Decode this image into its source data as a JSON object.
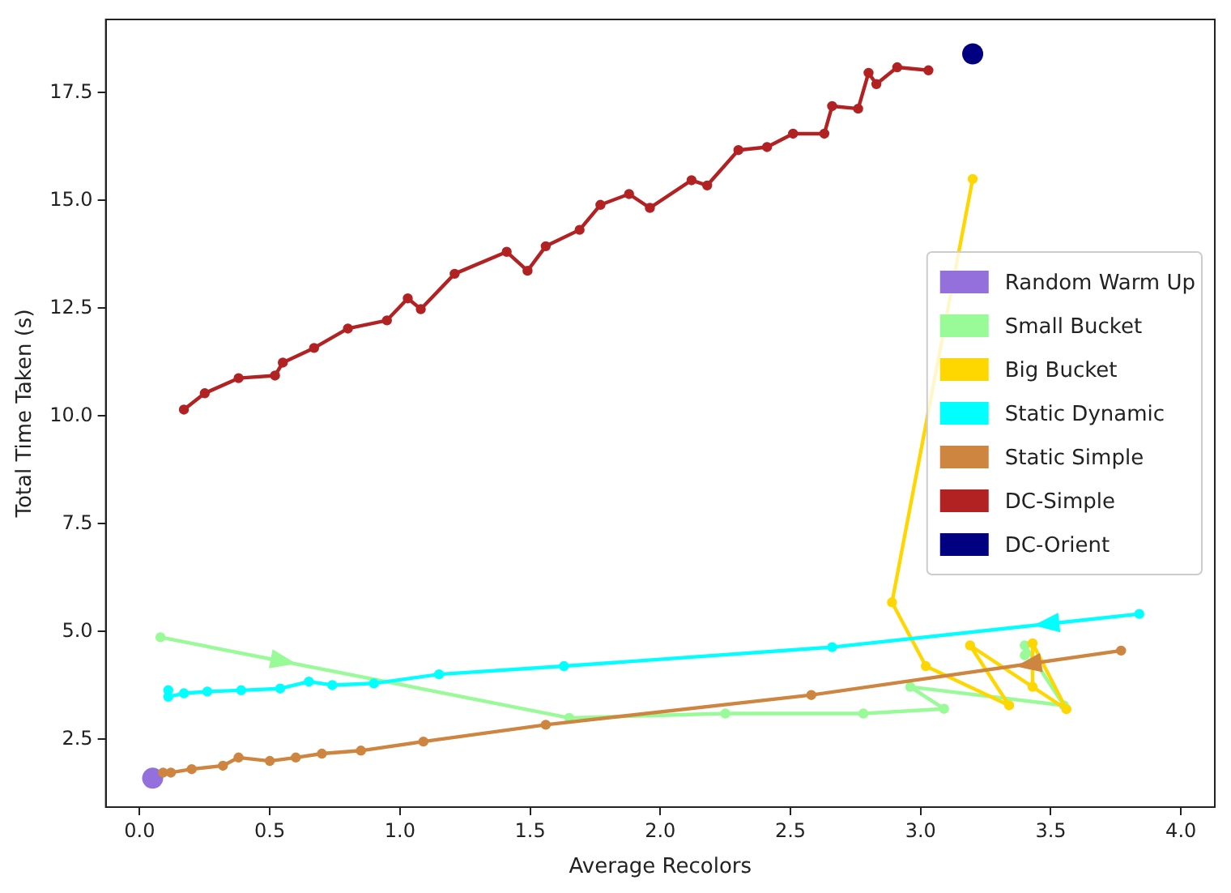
{
  "chart_data": {
    "type": "line",
    "xlabel": "Average Recolors",
    "ylabel": "Total Time Taken (s)",
    "xlim": [
      -0.13,
      4.13
    ],
    "ylim": [
      0.93,
      19.2
    ],
    "xticks": [
      {
        "value": 0,
        "label": "0.0"
      },
      {
        "value": 0.5,
        "label": "0.5"
      },
      {
        "value": 1,
        "label": "1.0"
      },
      {
        "value": 1.5,
        "label": "1.5"
      },
      {
        "value": 2,
        "label": "2.0"
      },
      {
        "value": 2.5,
        "label": "2.5"
      },
      {
        "value": 3,
        "label": "3.0"
      },
      {
        "value": 3.5,
        "label": "3.5"
      },
      {
        "value": 4,
        "label": "4.0"
      }
    ],
    "yticks": [
      2.5,
      {
        "value": 5,
        "label": "5.0"
      },
      7.5,
      {
        "value": 10,
        "label": "10.0"
      },
      12.5,
      {
        "value": 15,
        "label": "15.0"
      },
      17.5
    ],
    "grid": false,
    "legend": "right",
    "marker": "circle",
    "line_style": "solid",
    "series": [
      {
        "name": "Random Warm Up",
        "type": "scatter",
        "color": "#9370db",
        "x": [
          0.05
        ],
        "values": [
          1.6
        ]
      },
      {
        "name": "Small Bucket",
        "color": "#98fb98",
        "x": [
          0.08,
          1.65,
          2.25,
          2.78,
          3.09,
          2.96,
          3.55,
          3.4,
          3.4
        ],
        "values": [
          4.87,
          3.0,
          3.1,
          3.1,
          3.21,
          3.72,
          3.29,
          4.68,
          4.45
        ]
      },
      {
        "name": "Big Bucket",
        "color": "#ffd700",
        "x": [
          3.2,
          2.89,
          3.02,
          3.34,
          3.19,
          3.56,
          3.43,
          3.43
        ],
        "values": [
          15.5,
          5.68,
          4.2,
          3.29,
          4.68,
          3.2,
          4.73,
          3.72
        ]
      },
      {
        "name": "Static Dynamic",
        "color": "#00ffff",
        "x": [
          3.84,
          2.66,
          1.63,
          1.15,
          0.9,
          0.74,
          0.65,
          0.54,
          0.39,
          0.26,
          0.17,
          0.11,
          0.11
        ],
        "values": [
          5.41,
          4.64,
          4.2,
          4.01,
          3.8,
          3.76,
          3.84,
          3.68,
          3.64,
          3.61,
          3.57,
          3.49,
          3.64
        ]
      },
      {
        "name": "Static Simple",
        "color": "#cd853f",
        "x": [
          3.77,
          2.58,
          1.56,
          1.09,
          0.85,
          0.7,
          0.6,
          0.5,
          0.38,
          0.32,
          0.2,
          0.12,
          0.09
        ],
        "values": [
          4.56,
          3.53,
          2.84,
          2.45,
          2.24,
          2.17,
          2.08,
          2.0,
          2.08,
          1.89,
          1.81,
          1.73,
          1.73
        ]
      },
      {
        "name": "DC-Simple",
        "color": "#b22222",
        "x": [
          0.17,
          0.25,
          0.38,
          0.52,
          0.55,
          0.67,
          0.8,
          0.95,
          1.03,
          1.08,
          1.21,
          1.41,
          1.49,
          1.56,
          1.69,
          1.77,
          1.88,
          1.96,
          2.12,
          2.18,
          2.3,
          2.41,
          2.51,
          2.63,
          2.66,
          2.76,
          2.8,
          2.83,
          2.91,
          3.03
        ],
        "values": [
          10.15,
          10.53,
          10.88,
          10.94,
          11.24,
          11.58,
          12.03,
          12.22,
          12.73,
          12.48,
          13.3,
          13.81,
          13.37,
          13.94,
          14.32,
          14.9,
          15.15,
          14.83,
          15.47,
          15.35,
          16.17,
          16.24,
          16.55,
          16.55,
          17.19,
          17.13,
          17.96,
          17.7,
          18.09,
          18.02
        ]
      },
      {
        "name": "DC-Orient",
        "type": "scatter",
        "color": "#000080",
        "x": [
          3.2
        ],
        "values": [
          18.4
        ]
      }
    ]
  }
}
